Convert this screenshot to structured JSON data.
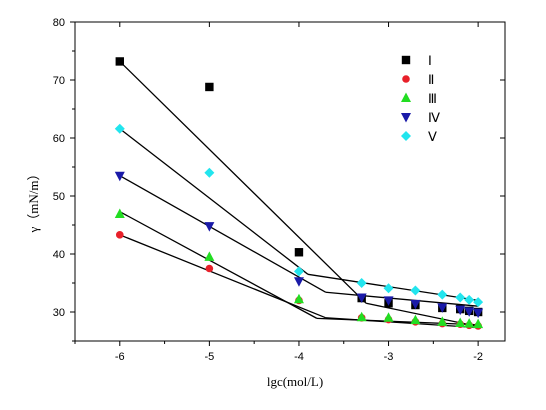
{
  "chart_data": {
    "type": "scatter",
    "xlabel": "lgc(mol/L)",
    "ylabel": "γ（mN/m）",
    "xlim": [
      -6.5,
      -1.7
    ],
    "ylim": [
      25,
      80
    ],
    "x_ticks": [
      -6,
      -5,
      -4,
      -3,
      -2
    ],
    "y_ticks": [
      30,
      40,
      50,
      60,
      70,
      80
    ],
    "legend_position": "top-right",
    "grid": false,
    "series": [
      {
        "name": "Ⅰ",
        "marker": "square",
        "color": "#000000",
        "points": [
          [
            -6,
            73.2
          ],
          [
            -5,
            68.8
          ],
          [
            -4,
            40.3
          ],
          [
            -3.3,
            32.4
          ],
          [
            -3,
            31.5
          ],
          [
            -2.7,
            31.2
          ],
          [
            -2.4,
            30.7
          ],
          [
            -2.2,
            30.5
          ],
          [
            -2.1,
            30.2
          ],
          [
            -2,
            30.0
          ]
        ],
        "fit_lines": [
          [
            [
              -6,
              73.2
            ],
            [
              -3.25,
              31.5
            ]
          ],
          [
            [
              -3.25,
              31.5
            ],
            [
              -2,
              27.5
            ]
          ]
        ]
      },
      {
        "name": "Ⅱ",
        "marker": "circle",
        "color": "#e8202a",
        "points": [
          [
            -6,
            43.3
          ],
          [
            -5,
            37.5
          ],
          [
            -4,
            32.0
          ],
          [
            -3.3,
            29.0
          ],
          [
            -3,
            28.7
          ],
          [
            -2.7,
            28.3
          ],
          [
            -2.4,
            28.0
          ],
          [
            -2.2,
            27.9
          ],
          [
            -2.1,
            27.7
          ],
          [
            -2,
            27.6
          ]
        ],
        "fit_lines": [
          [
            [
              -6,
              43.3
            ],
            [
              -3.7,
              29.0
            ]
          ],
          [
            [
              -3.7,
              29.0
            ],
            [
              -2,
              27.3
            ]
          ]
        ]
      },
      {
        "name": "Ⅲ",
        "marker": "triangle-up",
        "color": "#22dd22",
        "points": [
          [
            -6,
            46.9
          ],
          [
            -5,
            39.5
          ],
          [
            -4,
            32.2
          ],
          [
            -3.3,
            29.1
          ],
          [
            -3,
            29.0
          ],
          [
            -2.7,
            28.6
          ],
          [
            -2.4,
            28.3
          ],
          [
            -2.2,
            28.1
          ],
          [
            -2.1,
            28.0
          ],
          [
            -2,
            27.9
          ]
        ],
        "fit_lines": [
          [
            [
              -6,
              47.3
            ],
            [
              -3.8,
              28.9
            ]
          ],
          [
            [
              -3.8,
              28.9
            ],
            [
              -2,
              27.8
            ]
          ]
        ]
      },
      {
        "name": "Ⅳ",
        "marker": "triangle-down",
        "color": "#1a1aa8",
        "points": [
          [
            -6,
            53.5
          ],
          [
            -5,
            44.8
          ],
          [
            -4,
            35.3
          ],
          [
            -3.3,
            32.5
          ],
          [
            -3,
            32.0
          ],
          [
            -2.7,
            31.4
          ],
          [
            -2.4,
            30.8
          ],
          [
            -2.2,
            30.4
          ],
          [
            -2.1,
            30.1
          ],
          [
            -2,
            29.9
          ]
        ],
        "fit_lines": [
          [
            [
              -6,
              53.5
            ],
            [
              -3.7,
              33.4
            ]
          ],
          [
            [
              -3.7,
              33.4
            ],
            [
              -2,
              31.0
            ]
          ]
        ]
      },
      {
        "name": "Ⅴ",
        "marker": "diamond",
        "color": "#22e5ee",
        "points": [
          [
            -6,
            61.6
          ],
          [
            -5,
            54.0
          ],
          [
            -4,
            37.0
          ],
          [
            -3.3,
            35.0
          ],
          [
            -3,
            34.1
          ],
          [
            -2.7,
            33.7
          ],
          [
            -2.4,
            33.0
          ],
          [
            -2.2,
            32.5
          ],
          [
            -2.1,
            32.1
          ],
          [
            -2,
            31.7
          ]
        ],
        "fit_lines": [
          [
            [
              -6,
              61.6
            ],
            [
              -3.9,
              36.5
            ]
          ],
          [
            [
              -3.9,
              36.5
            ],
            [
              -2,
              32.0
            ]
          ]
        ]
      }
    ]
  }
}
